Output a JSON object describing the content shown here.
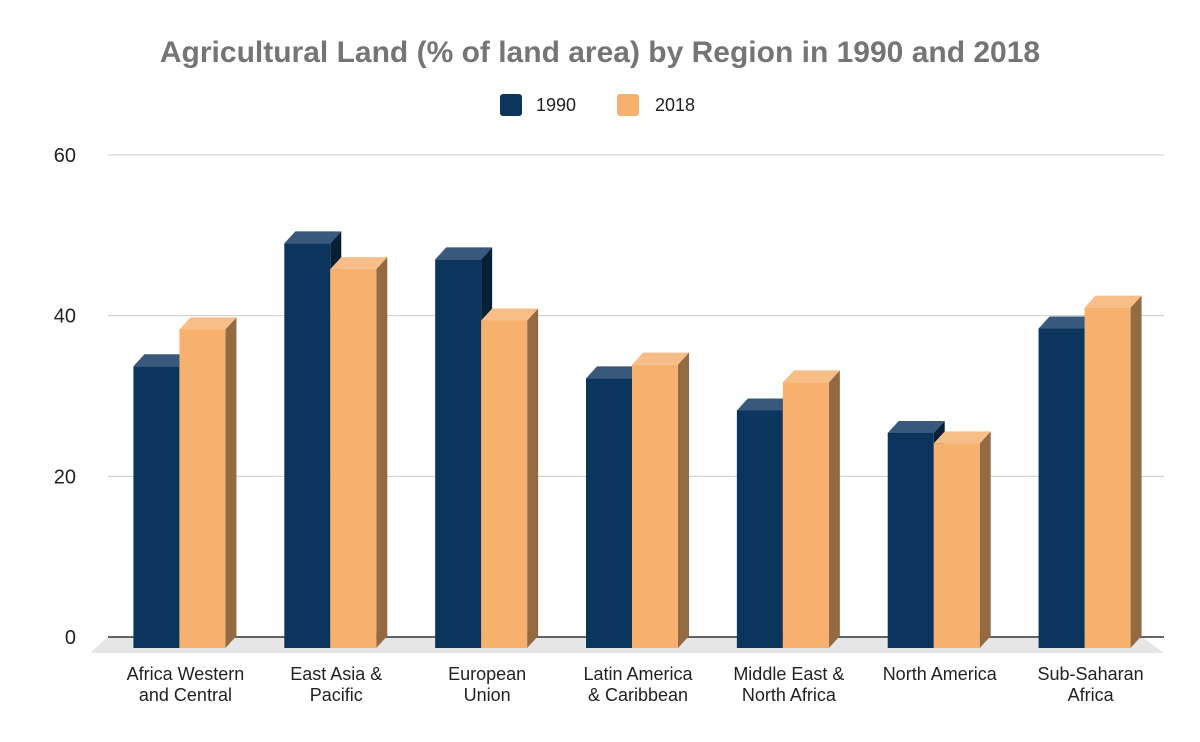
{
  "chart_data": {
    "type": "bar",
    "title": "Agricultural Land (% of land area) by Region in 1990 and 2018",
    "xlabel": "",
    "ylabel": "",
    "ylim": [
      0,
      60
    ],
    "yticks": [
      "0",
      "20",
      "40",
      "60"
    ],
    "grid": true,
    "legend_position": "top",
    "categories": [
      [
        "Africa Western",
        "and Central"
      ],
      [
        "East Asia &",
        "Pacific"
      ],
      [
        "European",
        "Union"
      ],
      [
        "Latin America",
        "& Caribbean"
      ],
      [
        "Middle East &",
        "North Africa"
      ],
      [
        "North America"
      ],
      [
        "Sub-Saharan",
        "Africa"
      ]
    ],
    "series": [
      {
        "name": "1990",
        "color": "#0c355e",
        "values": [
          33.7,
          49.0,
          47.0,
          32.2,
          28.2,
          25.4,
          38.4
        ]
      },
      {
        "name": "2018",
        "color": "#f5b16d",
        "values": [
          38.3,
          45.8,
          39.4,
          33.9,
          31.7,
          24.1,
          41.0
        ]
      }
    ]
  }
}
